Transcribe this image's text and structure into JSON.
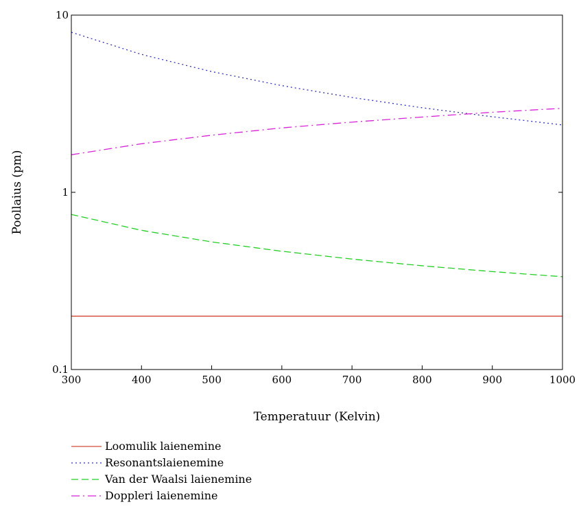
{
  "chart_data": {
    "type": "line",
    "title": "",
    "xlabel": "Temperatuur (Kelvin)",
    "ylabel": "Poollaius (pm)",
    "x_scale": "linear",
    "y_scale": "log",
    "xlim": [
      300,
      1000
    ],
    "ylim": [
      0.1,
      10
    ],
    "x_ticks": [
      300,
      400,
      500,
      600,
      700,
      800,
      900,
      1000
    ],
    "x_tick_labels": [
      "300",
      "400",
      "500",
      "600",
      "700",
      "800",
      "900",
      "1000"
    ],
    "y_ticks": [
      0.1,
      1,
      10
    ],
    "y_tick_labels": [
      "0.1",
      "1",
      "10"
    ],
    "grid": false,
    "legend_position": "bottom-left",
    "x": [
      300,
      400,
      500,
      600,
      700,
      800,
      900,
      1000
    ],
    "series": [
      {
        "name": "Loomulik laienemine",
        "color": "#d44a3a",
        "dash": "solid",
        "values": [
          0.2,
          0.2,
          0.2,
          0.2,
          0.2,
          0.2,
          0.2,
          0.2
        ]
      },
      {
        "name": "Resonantslaienemine",
        "color": "#2b2bd8",
        "dash": "dotted",
        "values": [
          8.0,
          6.0,
          4.8,
          4.0,
          3.43,
          3.0,
          2.67,
          2.4
        ]
      },
      {
        "name": "Van der Waalsi laienemine",
        "color": "#22d022",
        "dash": "dashed",
        "values": [
          0.75,
          0.61,
          0.525,
          0.465,
          0.42,
          0.385,
          0.357,
          0.334
        ]
      },
      {
        "name": "Doppleri laienemine",
        "color": "#d822d8",
        "dash": "dashdot",
        "values": [
          1.63,
          1.88,
          2.1,
          2.31,
          2.49,
          2.66,
          2.83,
          2.98
        ]
      }
    ]
  }
}
